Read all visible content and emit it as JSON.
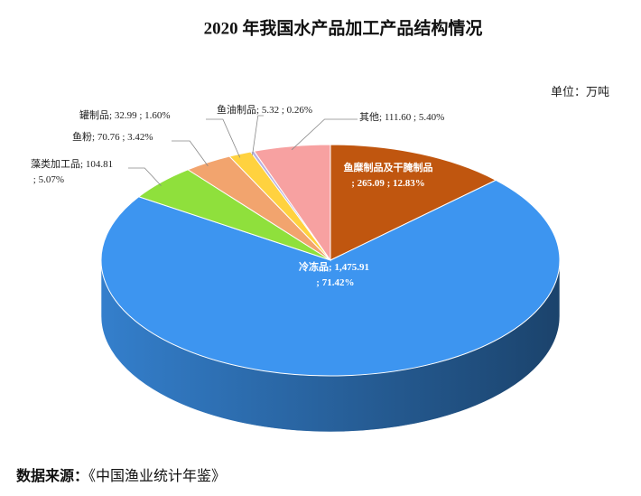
{
  "chart_data": {
    "type": "pie3d",
    "title": "2020 年我国水产品加工产品结构情况",
    "unit": "单位：万吨",
    "source_label": "数据来源：",
    "source": "《中国渔业统计年鉴》",
    "name_separator": "; ",
    "value_separator": " ; ",
    "categories": [
      "鱼糜制品及干腌制品",
      "冷冻品",
      "藻类加工品",
      "鱼粉",
      "罐制品",
      "鱼油制品",
      "其他"
    ],
    "values": [
      265.09,
      1475.91,
      104.81,
      70.76,
      32.99,
      5.32,
      111.6
    ],
    "value_labels": [
      "265.09",
      "1,475.91",
      "104.81",
      "70.76",
      "32.99",
      "5.32",
      "111.60"
    ],
    "percents": [
      12.83,
      71.42,
      5.07,
      3.42,
      1.6,
      0.26,
      5.4
    ],
    "percent_labels": [
      "12.83%",
      "71.42%",
      "5.07%",
      "3.42%",
      "1.60%",
      "0.26%",
      "5.40%"
    ],
    "colors": [
      "#c0560f",
      "#3d95f0",
      "#8fe03c",
      "#f2a46e",
      "#ffd23f",
      "#b8b0e0",
      "#f7a1a1"
    ]
  }
}
